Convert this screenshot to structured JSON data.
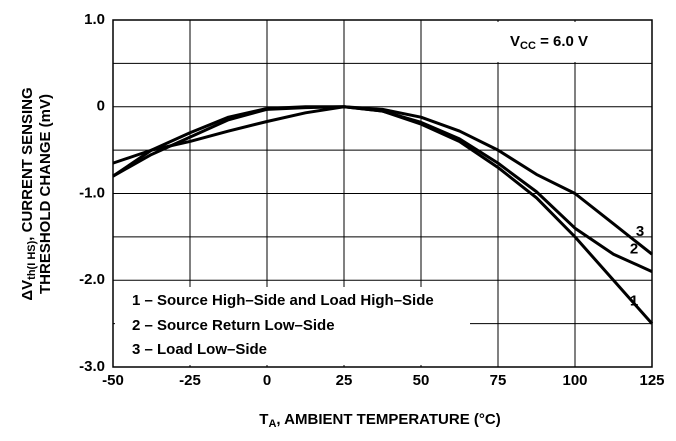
{
  "chart_data": {
    "type": "line",
    "x_label": {
      "main": "T",
      "sub": "A",
      "rest": ", AMBIENT TEMPERATURE (°C)"
    },
    "y_label": {
      "line1_main": "ΔV",
      "line1_sub": "th(I HS)",
      "line1_rest": ", CURRENT SENSING",
      "line2": "THRESHOLD CHANGE (mV)"
    },
    "annotation": {
      "main": "V",
      "sub": "CC",
      "rest": " = 6.0 V"
    },
    "legend_notes": [
      "1 – Source High–Side and Load High–Side",
      "2 – Source Return Low–Side",
      "3 – Load Low–Side"
    ],
    "x": [
      -50,
      -37.5,
      -25,
      -12.5,
      0,
      12.5,
      25,
      37.5,
      50,
      62.5,
      75,
      87.5,
      100,
      112.5,
      125
    ],
    "series": [
      {
        "name": "1",
        "color": "#000000",
        "values": [
          -0.8,
          -0.5,
          -0.3,
          -0.12,
          -0.02,
          0,
          0,
          -0.05,
          -0.2,
          -0.4,
          -0.7,
          -1.05,
          -1.5,
          -2.0,
          -2.5
        ]
      },
      {
        "name": "2",
        "color": "#000000",
        "values": [
          -0.8,
          -0.55,
          -0.35,
          -0.15,
          -0.03,
          -0.01,
          0,
          -0.05,
          -0.18,
          -0.37,
          -0.65,
          -0.98,
          -1.4,
          -1.7,
          -1.9
        ]
      },
      {
        "name": "3",
        "color": "#000000",
        "values": [
          -0.65,
          -0.5,
          -0.4,
          -0.28,
          -0.17,
          -0.07,
          0,
          -0.03,
          -0.12,
          -0.28,
          -0.5,
          -0.78,
          -1.0,
          -1.35,
          -1.7
        ]
      }
    ],
    "xlim": [
      -50,
      125
    ],
    "xticks": [
      -50,
      -25,
      0,
      25,
      50,
      75,
      100,
      125
    ],
    "ylim": [
      -3,
      1
    ],
    "yticks": [
      {
        "value": 1,
        "label": "1.0"
      },
      0,
      {
        "value": -1,
        "label": "-1.0"
      },
      {
        "value": -2,
        "label": "-2.0"
      },
      {
        "value": -3,
        "label": "-3.0"
      }
    ],
    "minor_yticks": [
      0.5,
      -0.5,
      -1.5,
      -2.5
    ],
    "grid": true
  }
}
